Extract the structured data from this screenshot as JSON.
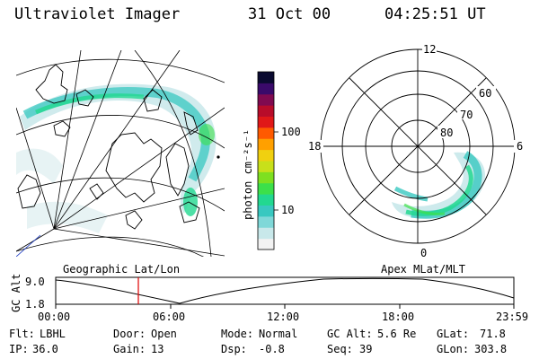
{
  "header": {
    "title": "Ultraviolet Imager",
    "date": "31 Oct 00",
    "time": "04:25:51 UT"
  },
  "colorbar": {
    "unit_label": "photon cm⁻²s⁻¹",
    "ticks": [
      "100",
      "10"
    ],
    "colors": [
      "#f2f2f2",
      "#c8e8ea",
      "#7fd8d8",
      "#38c8c0",
      "#22d890",
      "#3ce04a",
      "#7ee020",
      "#c8e01a",
      "#f0d010",
      "#ffa000",
      "#ff5a00",
      "#e01818",
      "#b80c2a",
      "#800a50",
      "#3a0a6a",
      "#0a0a30"
    ]
  },
  "polar_grid": {
    "mlt_labels": {
      "top": "12",
      "left": "18",
      "right": "6",
      "bottom": "0"
    },
    "mlat_labels": [
      "60",
      "70",
      "80"
    ]
  },
  "map_labels": {
    "left": "Geographic Lat/Lon",
    "right": "Apex MLat/MLT"
  },
  "altitude_plot": {
    "ylabel": "GC Alt",
    "yticks": [
      "9.0",
      "1.8"
    ],
    "xticks": [
      "00:00",
      "06:00",
      "12:00",
      "18:00",
      "23:59"
    ],
    "current_time_color": "#e00000"
  },
  "info": {
    "flt_label": "Flt:",
    "flt_value": "LBHL",
    "ip_label": "IP:",
    "ip_value": "36.0",
    "door_label": "Door:",
    "door_value": "Open",
    "gain_label": "Gain:",
    "gain_value": "13",
    "mode_label": "Mode:",
    "mode_value": "Normal",
    "dsp_label": "Dsp:",
    "dsp_value": "-0.8",
    "gcalt_label": "GC Alt:",
    "gcalt_value": "5.6 Re",
    "seq_label": "Seq:",
    "seq_value": "39",
    "glat_label": "GLat:",
    "glat_value": "71.8",
    "glon_label": "GLon:",
    "glon_value": "303.8"
  }
}
